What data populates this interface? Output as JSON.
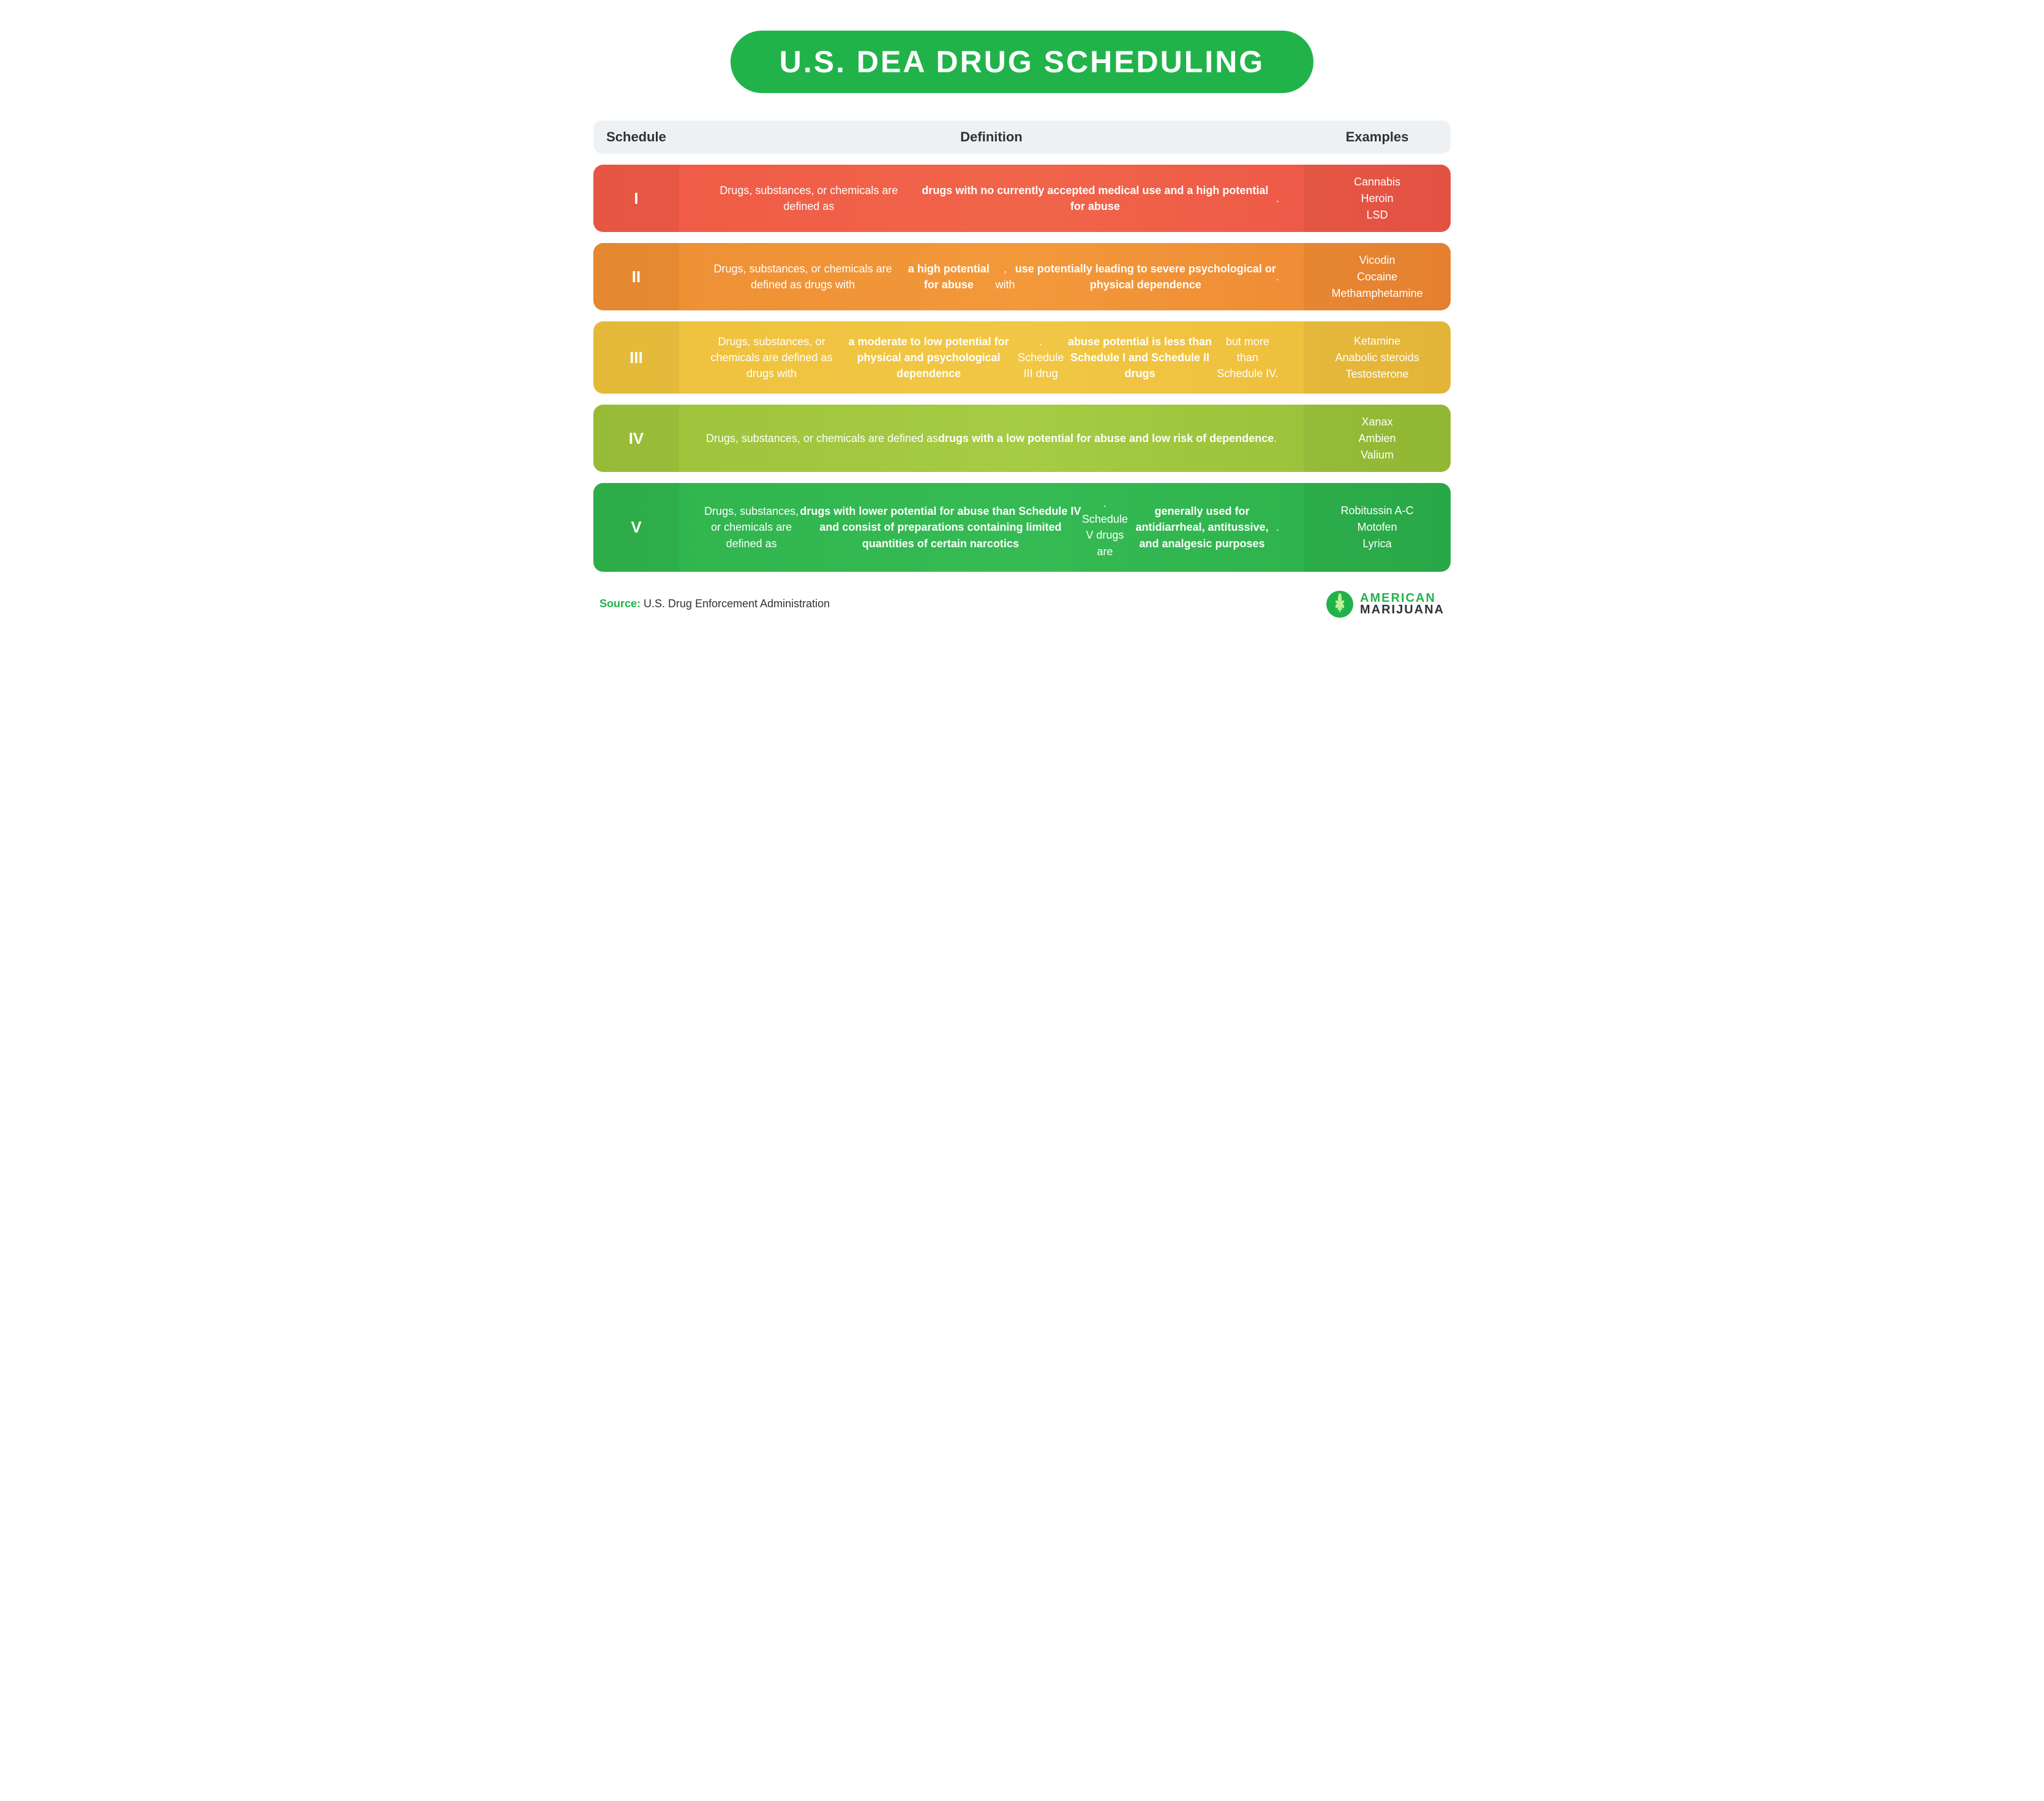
{
  "title": "U.S. DEA DRUG SCHEDULING",
  "columns": {
    "schedule": "Schedule",
    "definition": "Definition",
    "examples": "Examples"
  },
  "rows": [
    {
      "id": "I",
      "colors": {
        "left": "#f05a46",
        "mid": "#f0654a",
        "right": "#ed5546"
      },
      "definition_html": "Drugs, substances, or chemicals are defined as <b>drugs with no currently accepted medical use and a high potential for abuse</b>.",
      "examples": [
        "Cannabis",
        "Heroin",
        "LSD"
      ]
    },
    {
      "id": "II",
      "colors": {
        "left": "#ee8e34",
        "mid": "#f2993a",
        "right": "#ef8633"
      },
      "definition_html": "Drugs, substances, or chemicals are defined as drugs with <b>a high potential for abuse</b>, with <b>use potentially leading to severe psychological or physical dependence</b>.",
      "examples": [
        "Vicodin",
        "Cocaine",
        "Methamphetamine"
      ]
    },
    {
      "id": "III",
      "colors": {
        "left": "#eec13d",
        "mid": "#f1c745",
        "right": "#edbc3a"
      },
      "definition_html": "Drugs, substances, or chemicals are defined as drugs with <b>a moderate to low potential for physical and psychological dependence</b>. Schedule III drug <b>abuse potential is less than Schedule I and Schedule II drugs</b> but more than Schedule IV.",
      "examples": [
        "Ketamine",
        "Anabolic steroids",
        "Testosterone"
      ]
    },
    {
      "id": "IV",
      "colors": {
        "left": "#9ec33a",
        "mid": "#a6cb44",
        "right": "#97bf36"
      },
      "definition_html": "Drugs, substances, or chemicals are defined as <b>drugs with a low potential for abuse and low risk of dependence</b>.",
      "examples": [
        "Xanax",
        "Ambien",
        "Valium"
      ]
    },
    {
      "id": "V",
      "colors": {
        "left": "#2fb44e",
        "mid": "#36ba54",
        "right": "#2aaf4a"
      },
      "definition_html": "Drugs, substances, or chemicals are defined as <b>drugs with lower potential for abuse than Schedule IV and consist of preparations containing limited quantities of certain narcotics</b>. Schedule V drugs are <b>generally used for antidiarrheal, antitussive, and analgesic purposes</b>.",
      "examples": [
        "Robitussin A-C",
        "Motofen",
        "Lyrica"
      ]
    }
  ],
  "source": {
    "label": "Source:",
    "text": "U.S. Drug Enforcement Administration"
  },
  "logo": {
    "line1": "AMERICAN",
    "line2": "MARIJUANA",
    "icon_bg": "#21b34a",
    "leaf": "#9fe07a"
  },
  "layout": {
    "col_widths": {
      "schedule": 140,
      "examples": 240
    },
    "row_radius": 16,
    "row_gap": 18,
    "title_bg": "#21b34a",
    "header_bg": "#eef1f4",
    "body_bg": "#ffffff",
    "font_family": "Helvetica Neue, Arial, sans-serif",
    "title_fontsize": 50,
    "header_fontsize": 22,
    "body_fontsize": 18
  }
}
